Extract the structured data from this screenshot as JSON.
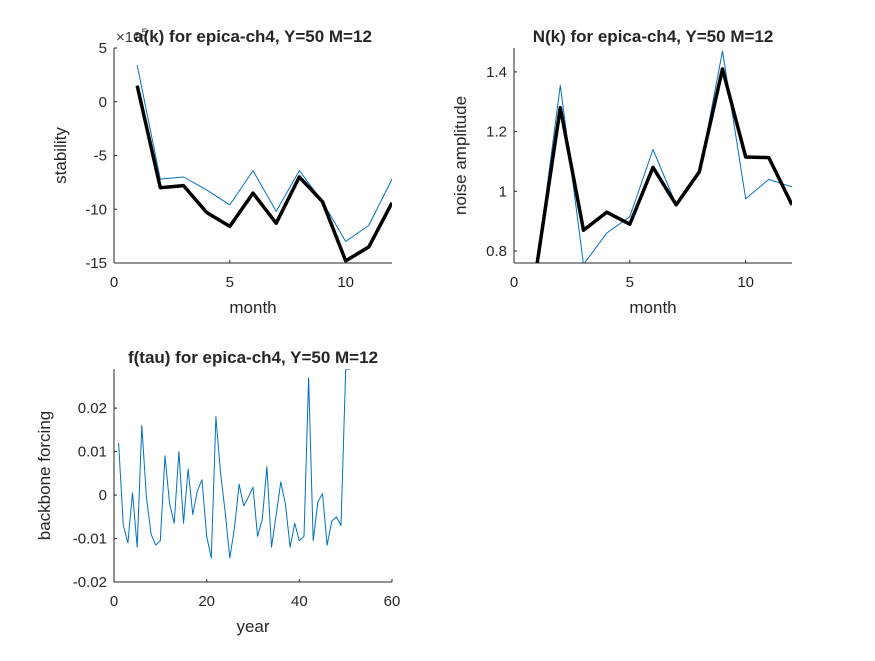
{
  "chart_data": [
    {
      "type": "line",
      "title": "a(k) for epica-ch4, Y=50 M=12",
      "exponent_label": "10^5",
      "xlabel": "month",
      "ylabel": "stability",
      "xlim": [
        0,
        12
      ],
      "ylim": [
        -15,
        5
      ],
      "xticks": [
        0,
        5,
        10
      ],
      "yticks": [
        5,
        0,
        -5,
        -10,
        -15
      ],
      "grid": false,
      "series": [
        {
          "color": "#0072BD",
          "width": "thin",
          "x": [
            1,
            2,
            3,
            4,
            5,
            6,
            7,
            8,
            9,
            10,
            11,
            12
          ],
          "y": [
            3.4,
            -7.2,
            -7.0,
            -8.2,
            -9.6,
            -6.4,
            -10.2,
            -6.4,
            -9.3,
            -13.0,
            -11.5,
            -7.2
          ]
        },
        {
          "color": "#000000",
          "width": "thick",
          "x": [
            1,
            2,
            3,
            4,
            5,
            6,
            7,
            8,
            9,
            10,
            11,
            12
          ],
          "y": [
            1.5,
            -8.0,
            -7.8,
            -10.3,
            -11.6,
            -8.5,
            -11.3,
            -7.0,
            -9.3,
            -14.8,
            -13.5,
            -9.4
          ]
        }
      ]
    },
    {
      "type": "line",
      "title": "N(k) for epica-ch4, Y=50 M=12",
      "xlabel": "month",
      "ylabel": "noise amplitude",
      "xlim": [
        0,
        12
      ],
      "ylim": [
        0.76,
        1.48
      ],
      "xticks": [
        0,
        5,
        10
      ],
      "yticks": [
        1.4,
        1.2,
        1,
        0.8
      ],
      "grid": false,
      "series": [
        {
          "color": "#0072BD",
          "width": "thin",
          "x": [
            1,
            2,
            3,
            4,
            5,
            6,
            7,
            8,
            9,
            10,
            11,
            12
          ],
          "y": [
            0.76,
            1.355,
            0.755,
            0.86,
            0.915,
            1.14,
            0.955,
            1.06,
            1.47,
            0.975,
            1.04,
            1.015
          ]
        },
        {
          "color": "#000000",
          "width": "thick",
          "x": [
            1,
            2,
            3,
            4,
            5,
            6,
            7,
            8,
            9,
            10,
            11,
            12
          ],
          "y": [
            0.76,
            1.28,
            0.87,
            0.93,
            0.89,
            1.08,
            0.955,
            1.065,
            1.41,
            1.115,
            1.113,
            0.955
          ]
        }
      ]
    },
    {
      "type": "line",
      "title": "f(tau) for epica-ch4, Y=50 M=12",
      "xlabel": "year",
      "ylabel": "backbone forcing",
      "xlim": [
        0,
        60
      ],
      "ylim": [
        -0.02,
        0.029
      ],
      "xticks": [
        0,
        20,
        40,
        60
      ],
      "yticks": [
        0.02,
        0.01,
        0,
        -0.01,
        -0.02
      ],
      "grid": false,
      "series": [
        {
          "color": "#0072BD",
          "width": "thin",
          "x": [
            1,
            2,
            3,
            4,
            5,
            6,
            7,
            8,
            9,
            10,
            11,
            12,
            13,
            14,
            15,
            16,
            17,
            18,
            19,
            20,
            21,
            22,
            23,
            24,
            25,
            26,
            27,
            28,
            29,
            30,
            31,
            32,
            33,
            34,
            35,
            36,
            37,
            38,
            39,
            40,
            41,
            42,
            43,
            44,
            45,
            46,
            47,
            48,
            49,
            50,
            51
          ],
          "y": [
            0.012,
            -0.007,
            -0.011,
            0.0005,
            -0.012,
            0.016,
            -0.0005,
            -0.009,
            -0.0115,
            -0.0105,
            0.009,
            -0.002,
            -0.0065,
            0.01,
            -0.0065,
            0.006,
            -0.0045,
            0.001,
            0.0035,
            -0.0095,
            -0.0145,
            0.018,
            0.005,
            -0.004,
            -0.0145,
            -0.0075,
            0.0025,
            -0.0025,
            -0.0005,
            0.0018,
            -0.0095,
            -0.0055,
            0.0065,
            -0.012,
            -0.0045,
            0.003,
            -0.002,
            -0.012,
            -0.0065,
            -0.0105,
            -0.0095,
            0.027,
            -0.0105,
            -0.0015,
            0.0003,
            -0.0115,
            -0.006,
            -0.005,
            -0.007,
            0.029,
            0.029
          ]
        }
      ]
    }
  ]
}
